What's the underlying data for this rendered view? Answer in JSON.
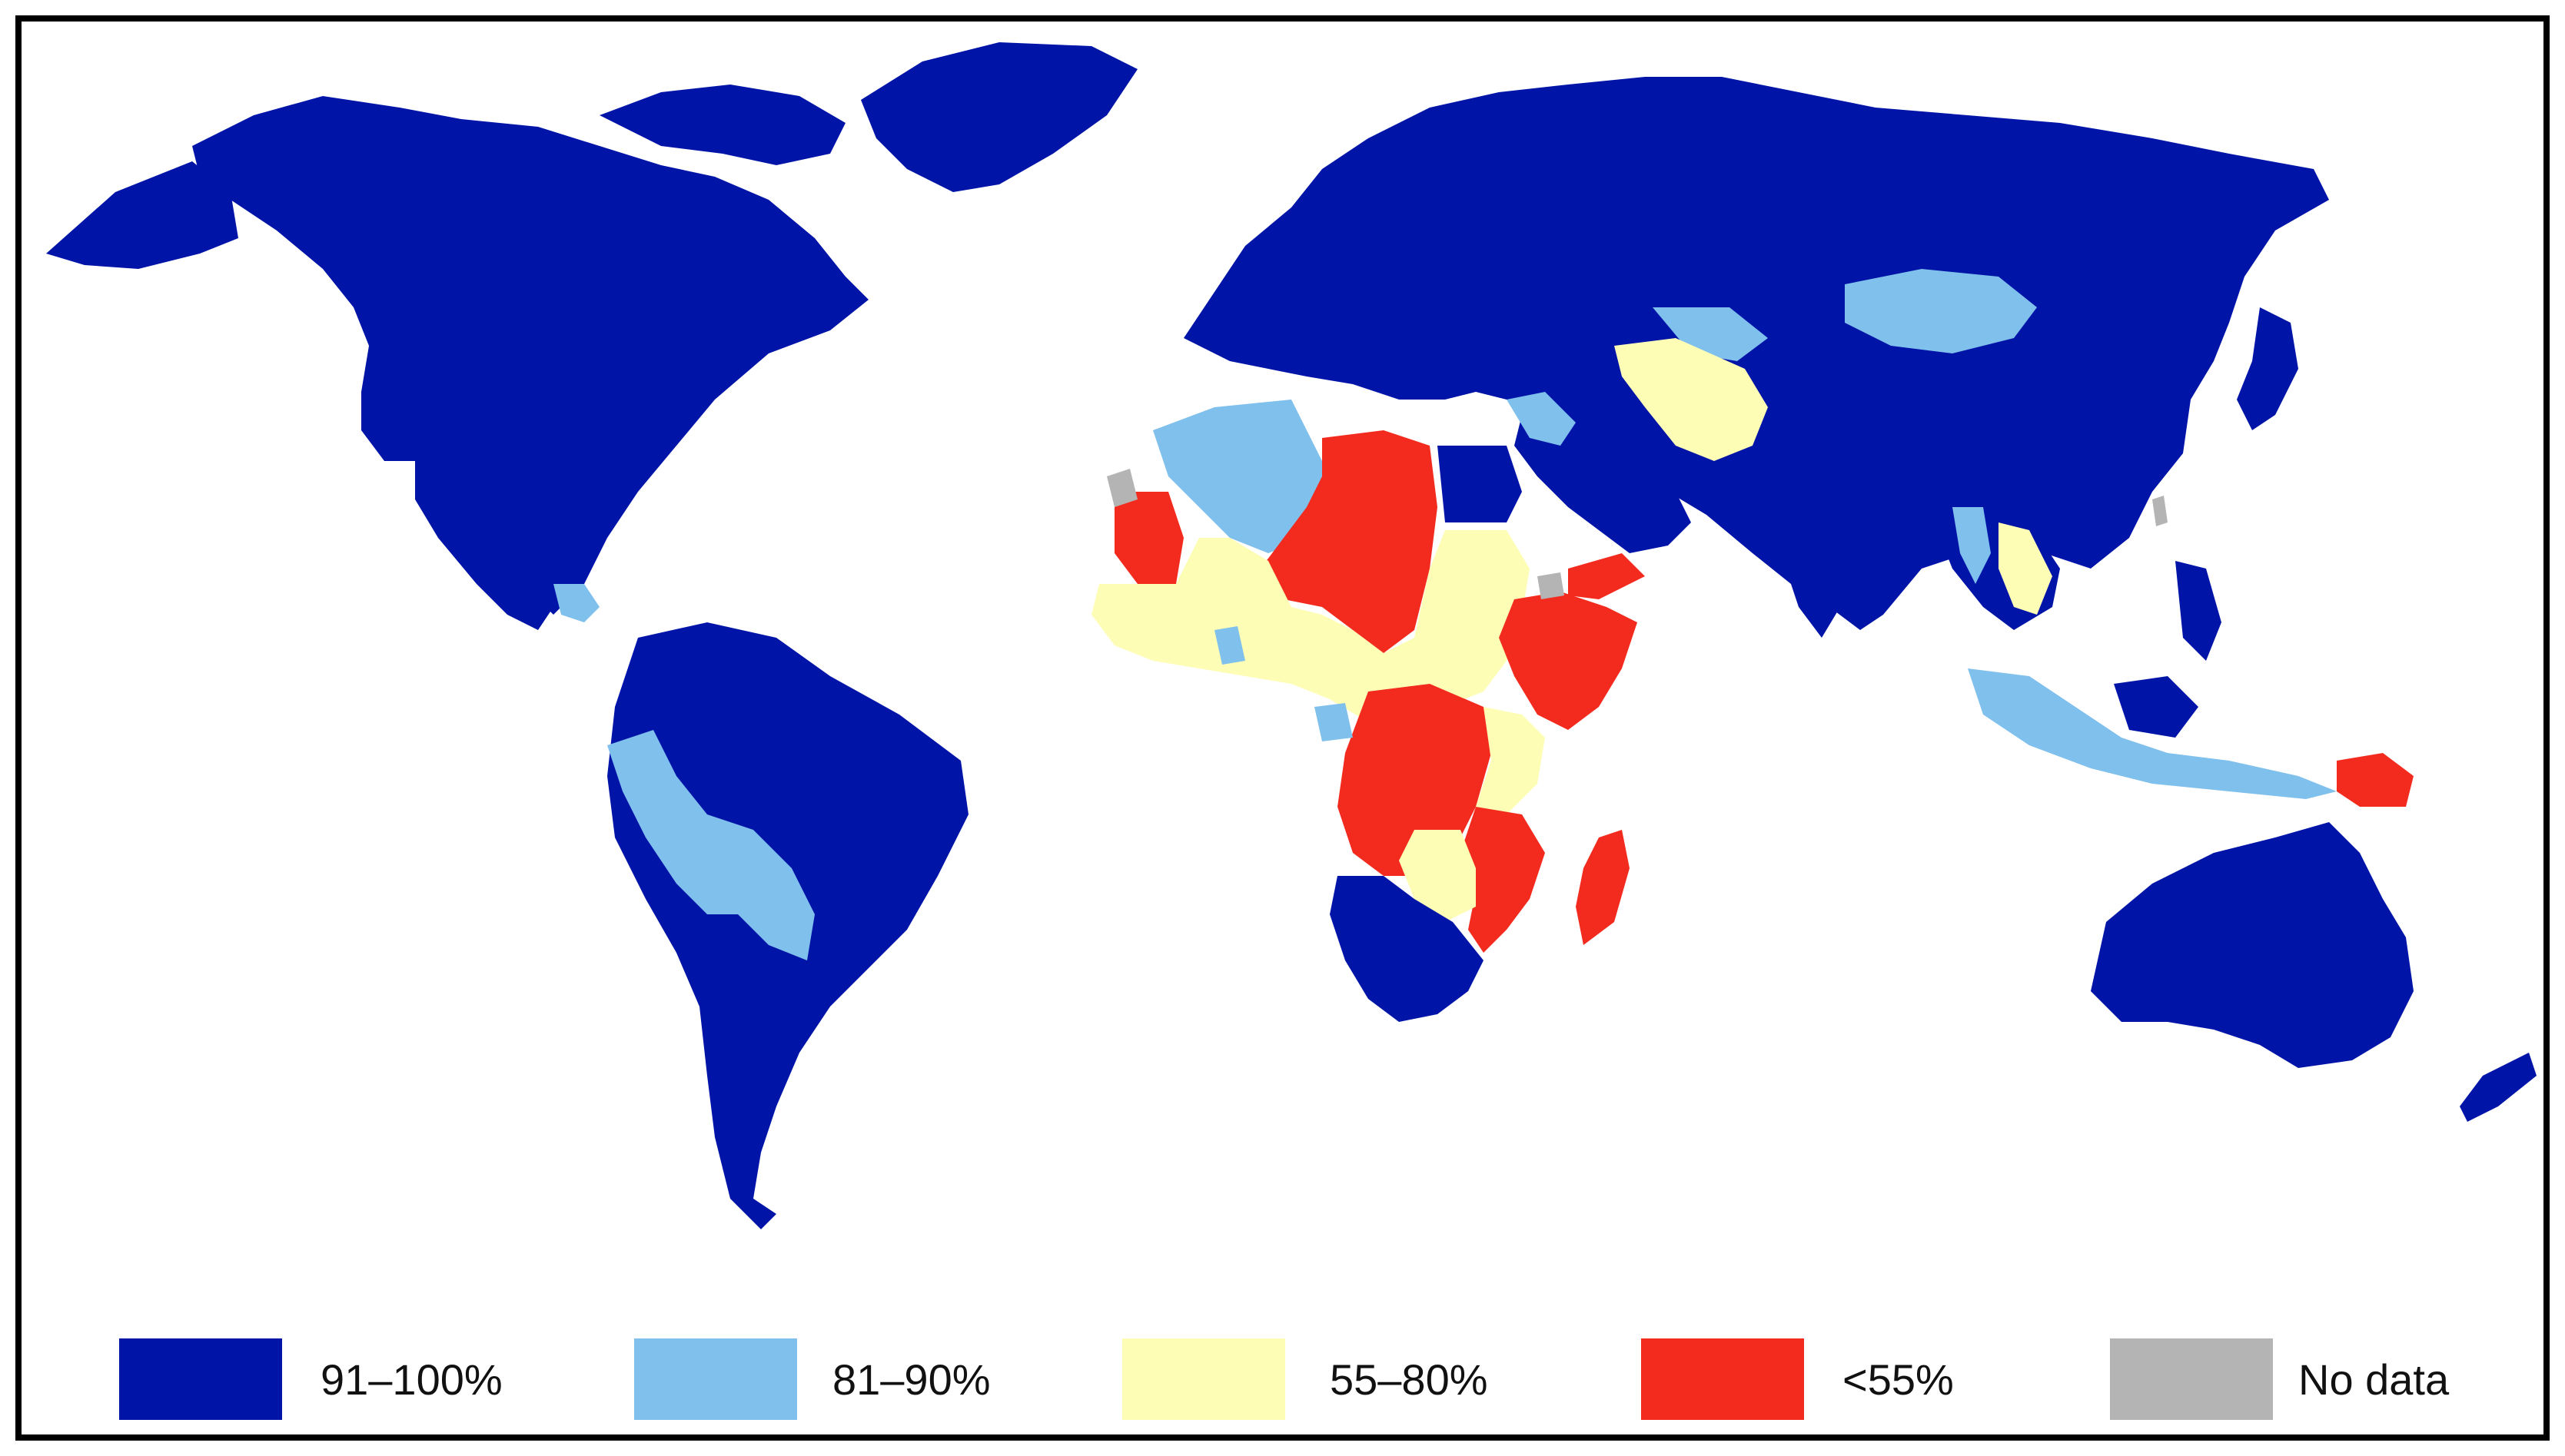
{
  "colors": {
    "band_91_100": "#0014a8",
    "band_81_90": "#80c0ec",
    "band_55_80": "#fefdb6",
    "band_lt55": "#f32b1e",
    "no_data": "#b4b4b4",
    "ocean": "#ffffff",
    "border": "#000000"
  },
  "legend": {
    "items": [
      {
        "label": "91–100%",
        "color_key": "band_91_100"
      },
      {
        "label": "81–90%",
        "color_key": "band_81_90"
      },
      {
        "label": "55–80%",
        "color_key": "band_55_80"
      },
      {
        "label": "<55%",
        "color_key": "band_lt55"
      },
      {
        "label": "No data",
        "color_key": "no_data"
      }
    ]
  }
}
